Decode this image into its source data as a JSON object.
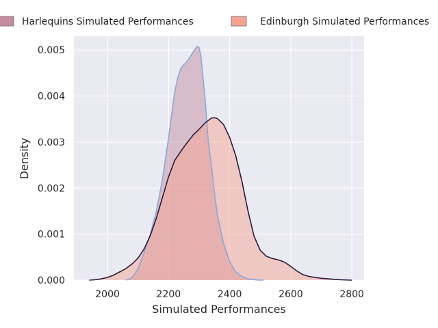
{
  "chart_data": {
    "type": "area",
    "title": "",
    "xlabel": "Simulated Performances",
    "ylabel": "Density",
    "xlim": [
      1890,
      2840
    ],
    "ylim": [
      0,
      0.0053
    ],
    "xticks": [
      2000,
      2200,
      2400,
      2600,
      2800
    ],
    "yticks": [
      0.0,
      0.001,
      0.002,
      0.003,
      0.004,
      0.005
    ],
    "ytick_labels": [
      "0.000",
      "0.001",
      "0.002",
      "0.003",
      "0.004",
      "0.005"
    ],
    "grid": true,
    "legend_position": "top",
    "background_color": "#eaeaf2",
    "series": [
      {
        "name": "Harlequins Simulated Performances",
        "fill_color": "#c48fa0",
        "line_color": "#8aa8d8",
        "x": [
          2060,
          2080,
          2100,
          2120,
          2140,
          2160,
          2180,
          2200,
          2210,
          2220,
          2230,
          2240,
          2250,
          2260,
          2270,
          2280,
          2290,
          2295,
          2300,
          2305,
          2310,
          2320,
          2330,
          2340,
          2350,
          2360,
          2380,
          2400,
          2420,
          2440,
          2460,
          2480,
          2500,
          2510
        ],
        "y": [
          0.0,
          5e-05,
          0.00025,
          0.0006,
          0.001,
          0.0015,
          0.0022,
          0.0031,
          0.0036,
          0.0041,
          0.0044,
          0.0046,
          0.00468,
          0.00475,
          0.00485,
          0.00495,
          0.00505,
          0.00508,
          0.00505,
          0.0049,
          0.0046,
          0.0039,
          0.003,
          0.0025,
          0.0019,
          0.0014,
          0.0008,
          0.0004,
          0.00018,
          8e-05,
          3e-05,
          1e-05,
          0.0,
          0.0
        ]
      },
      {
        "name": "Edinburgh Simulated Performances",
        "fill_color": "#f4a393",
        "line_color": "#2d1b3d",
        "x": [
          1940,
          1960,
          1980,
          2000,
          2020,
          2040,
          2060,
          2080,
          2100,
          2120,
          2140,
          2160,
          2180,
          2200,
          2220,
          2240,
          2260,
          2280,
          2300,
          2320,
          2340,
          2350,
          2360,
          2380,
          2400,
          2420,
          2440,
          2460,
          2480,
          2500,
          2520,
          2540,
          2560,
          2580,
          2600,
          2620,
          2640,
          2660,
          2680,
          2700,
          2720,
          2740,
          2760,
          2780,
          2800
        ],
        "y": [
          0.0,
          1e-05,
          3e-05,
          6e-05,
          0.00011,
          0.00018,
          0.00025,
          0.00035,
          0.00048,
          0.00068,
          0.00097,
          0.00135,
          0.0018,
          0.00225,
          0.0026,
          0.0028,
          0.00298,
          0.00315,
          0.00328,
          0.00342,
          0.00352,
          0.00353,
          0.00351,
          0.00338,
          0.0031,
          0.0027,
          0.00215,
          0.0015,
          0.00095,
          0.00065,
          0.00052,
          0.00047,
          0.00044,
          0.00039,
          0.0003,
          0.0002,
          0.00012,
          8e-05,
          6e-05,
          4e-05,
          3e-05,
          2e-05,
          1e-05,
          5e-06,
          0.0
        ]
      }
    ]
  },
  "legend": {
    "items": [
      {
        "label": "Harlequins Simulated Performances",
        "color": "#c48fa0"
      },
      {
        "label": "Edinburgh Simulated Performances",
        "color": "#f4a393"
      }
    ]
  }
}
